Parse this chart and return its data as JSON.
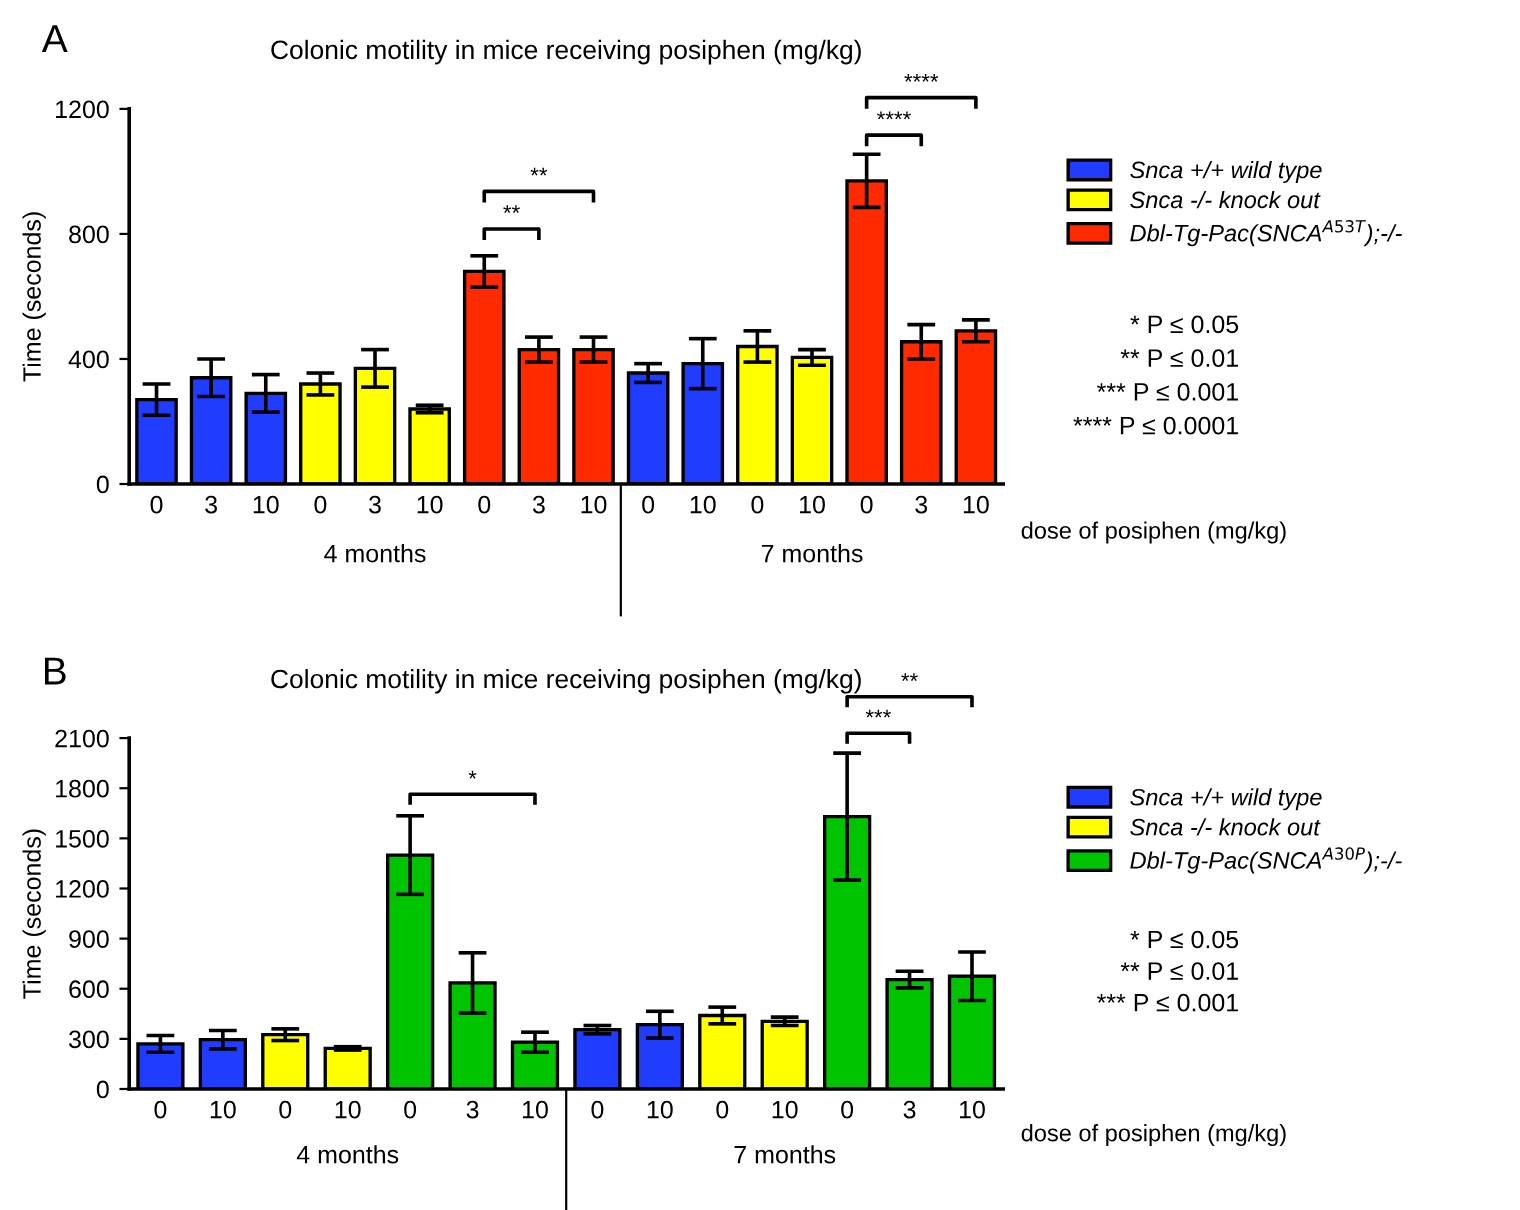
{
  "chart_data": [
    {
      "type": "bar",
      "title": "Colonic motility in mice receiving posiphen (mg/kg)",
      "xlabel": "dose of posiphen (mg/kg)",
      "ylabel": "Time (seconds)",
      "categories": [
        "0",
        "3",
        "10",
        "0",
        "3",
        "10",
        "0",
        "3",
        "10",
        "0",
        "10",
        "0",
        "10",
        "0",
        "3",
        "10"
      ],
      "series": [
        {
          "name": "Snca +/+ wild type",
          "color": "#1f3cff",
          "values": [
            270,
            340,
            290,
            null,
            null,
            null,
            null,
            null,
            null,
            355,
            385,
            null,
            null,
            null,
            null,
            null
          ],
          "errors": [
            50,
            60,
            60,
            null,
            null,
            null,
            null,
            null,
            null,
            30,
            80,
            null,
            null,
            null,
            null,
            null
          ]
        },
        {
          "name": "Snca -/- knock out",
          "color": "#ffff00",
          "values": [
            null,
            null,
            null,
            320,
            370,
            240,
            null,
            null,
            null,
            null,
            null,
            440,
            405,
            null,
            null,
            null
          ],
          "errors": [
            null,
            null,
            null,
            35,
            60,
            12,
            null,
            null,
            null,
            null,
            null,
            50,
            25,
            null,
            null,
            null
          ]
        },
        {
          "name": "Dbl-Tg-Pac(SNCA$^{A53T}$);-/-",
          "color": "#ff2a00",
          "values": [
            null,
            null,
            null,
            null,
            null,
            null,
            680,
            430,
            430,
            null,
            null,
            null,
            null,
            970,
            455,
            490
          ],
          "errors": [
            null,
            null,
            null,
            null,
            null,
            null,
            50,
            40,
            40,
            null,
            null,
            null,
            null,
            85,
            55,
            35
          ]
        }
      ],
      "ylim": [
        0,
        1200
      ],
      "yticks": [
        0,
        400,
        800,
        1200
      ],
      "grid": false,
      "legend": "right",
      "annotations": [
        "A",
        "4 months",
        "7 months",
        "* P ≤ 0.05",
        "** P ≤ 0.01",
        "*** P ≤ 0.001",
        "**** P ≤ 0.0001",
        "**",
        "**",
        "****",
        "****"
      ]
    },
    {
      "type": "bar",
      "title": "Colonic motility in mice receiving posiphen (mg/kg)",
      "xlabel": "dose of posiphen (mg/kg)",
      "ylabel": "Time (seconds)",
      "categories": [
        "0",
        "10",
        "0",
        "10",
        "0",
        "3",
        "10",
        "0",
        "10",
        "0",
        "10",
        "0",
        "3",
        "10"
      ],
      "series": [
        {
          "name": "Snca +/+ wild type",
          "color": "#1f3cff",
          "values": [
            270,
            295,
            null,
            null,
            null,
            null,
            null,
            355,
            385,
            null,
            null,
            null,
            null,
            null
          ],
          "errors": [
            50,
            55,
            null,
            null,
            null,
            null,
            null,
            25,
            80,
            null,
            null,
            null,
            null,
            null
          ]
        },
        {
          "name": "Snca -/- knock out",
          "color": "#ffff00",
          "values": [
            null,
            null,
            325,
            243,
            null,
            null,
            null,
            null,
            null,
            440,
            405,
            null,
            null,
            null
          ],
          "errors": [
            null,
            null,
            35,
            10,
            null,
            null,
            null,
            null,
            null,
            50,
            25,
            null,
            null,
            null
          ]
        },
        {
          "name": "Dbl-Tg-Pac(SNCA$^{A30P}$);-/-",
          "color": "#00c400",
          "values": [
            null,
            null,
            null,
            null,
            1400,
            635,
            280,
            null,
            null,
            null,
            null,
            1630,
            655,
            675
          ],
          "errors": [
            null,
            null,
            null,
            null,
            235,
            180,
            60,
            null,
            null,
            null,
            null,
            380,
            50,
            145
          ]
        }
      ],
      "ylim": [
        0,
        2100
      ],
      "yticks": [
        0,
        300,
        600,
        900,
        1200,
        1500,
        1800,
        2100
      ],
      "grid": false,
      "legend": "right",
      "annotations": [
        "B",
        "4 months",
        "7 months",
        "* P ≤ 0.05",
        "** P ≤ 0.01",
        "*** P ≤ 0.001",
        "*",
        "***",
        "**"
      ]
    }
  ]
}
